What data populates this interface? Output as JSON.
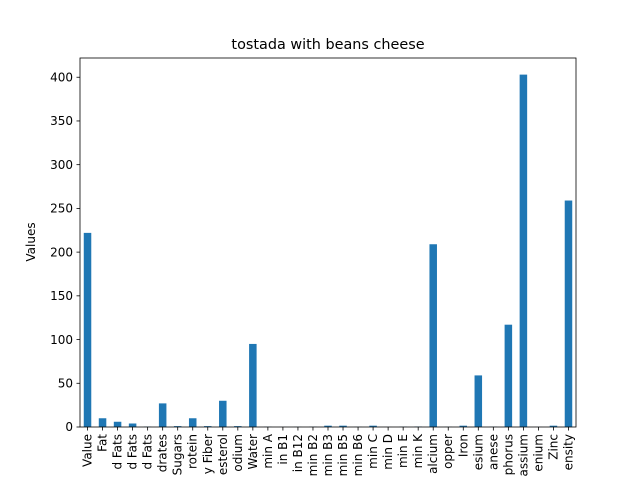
{
  "chart_data": {
    "type": "bar",
    "title": "tostada with beans cheese",
    "xlabel": "",
    "ylabel": "Values",
    "ylim": [
      0,
      422
    ],
    "yticks": [
      0,
      50,
      100,
      150,
      200,
      250,
      300,
      350,
      400
    ],
    "grid": false,
    "legend": "none",
    "bar_color": "#1f77b4",
    "categories": [
      "Value",
      "Fat",
      "d Fats",
      "d Fats",
      "d Fats",
      "drates",
      "Sugars",
      "rotein",
      "y Fiber",
      "esterol",
      "odium",
      "Water",
      "min A",
      "in B1",
      "in B12",
      "min B2",
      "min B3",
      "min B5",
      "min B6",
      "min C",
      "min D",
      "min E",
      "min K",
      "alcium",
      "opper",
      "Iron",
      "esium",
      "anese",
      "phorus",
      "assium",
      "enium",
      "Zinc",
      "ensity"
    ],
    "values": [
      222,
      10,
      6,
      4,
      0.4,
      27,
      1,
      10,
      1,
      30,
      1,
      95,
      0.3,
      0.1,
      0.2,
      0.3,
      1.5,
      1.5,
      0.2,
      1.5,
      0.1,
      0.3,
      0.5,
      209,
      0.2,
      1.5,
      59,
      0.3,
      117,
      403,
      0.1,
      1.5,
      259
    ]
  }
}
